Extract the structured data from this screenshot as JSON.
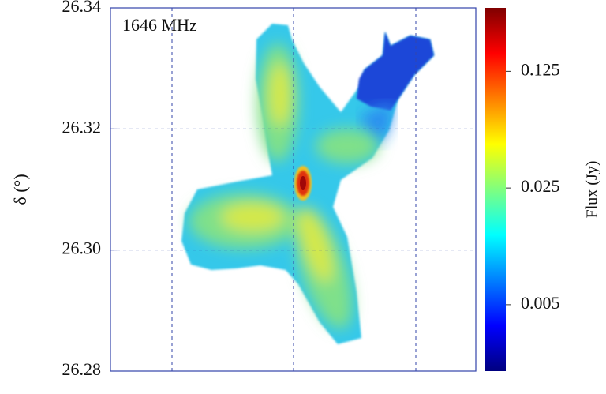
{
  "chart_data": {
    "type": "heatmap",
    "annotation": "1646 MHz",
    "ylabel": "δ (°)",
    "ylim": [
      26.28,
      26.34
    ],
    "yticks": [
      {
        "value": 26.28,
        "label": "26.28"
      },
      {
        "value": 26.3,
        "label": "26.30"
      },
      {
        "value": 26.32,
        "label": "26.32"
      },
      {
        "value": 26.34,
        "label": "26.34"
      }
    ],
    "grid": true,
    "colorbar": {
      "label": "Flux (Jy)",
      "log": true,
      "clim": [
        0.002,
        0.3
      ],
      "ticks": [
        0.005,
        0.025,
        0.125
      ],
      "colormap": "jet"
    }
  }
}
